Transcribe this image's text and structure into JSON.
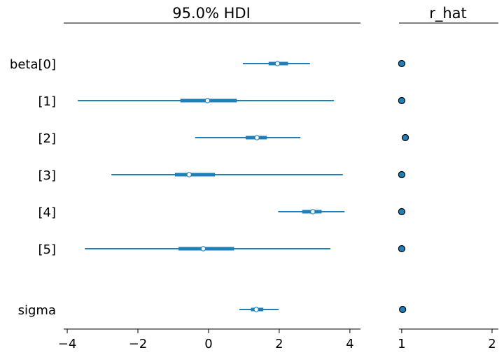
{
  "chart_data": [
    {
      "type": "forest",
      "title": "95.0% HDI",
      "xlim": [
        -4.1,
        4.3
      ],
      "ticks": [
        -4,
        -2,
        0,
        2,
        4
      ],
      "tick_labels": [
        "−4",
        "−2",
        "0",
        "2",
        "4"
      ],
      "rows": [
        {
          "label": "beta[0]",
          "median": 1.95,
          "iqr": [
            1.7,
            2.25
          ],
          "hdi": [
            0.97,
            2.87
          ]
        },
        {
          "label": "[1]",
          "median": -0.03,
          "iqr": [
            -0.8,
            0.8
          ],
          "hdi": [
            -3.7,
            3.55
          ]
        },
        {
          "label": "[2]",
          "median": 1.37,
          "iqr": [
            1.05,
            1.65
          ],
          "hdi": [
            -0.38,
            2.6
          ]
        },
        {
          "label": "[3]",
          "median": -0.55,
          "iqr": [
            -0.95,
            0.18
          ],
          "hdi": [
            -2.75,
            3.8
          ]
        },
        {
          "label": "[4]",
          "median": 2.95,
          "iqr": [
            2.65,
            3.2
          ],
          "hdi": [
            1.97,
            3.85
          ]
        },
        {
          "label": "[5]",
          "median": -0.15,
          "iqr": [
            -0.85,
            0.72
          ],
          "hdi": [
            -3.5,
            3.45
          ]
        },
        {
          "label": "sigma",
          "median": 1.35,
          "iqr": [
            1.2,
            1.55
          ],
          "hdi": [
            0.87,
            1.98
          ]
        }
      ]
    },
    {
      "type": "scatter",
      "title": "r_hat",
      "xlim": [
        0.97,
        2.07
      ],
      "ticks": [
        1,
        2
      ],
      "tick_labels": [
        "1",
        "2"
      ],
      "values": [
        1.0,
        1.0,
        1.04,
        1.0,
        1.0,
        1.0,
        1.01
      ]
    }
  ],
  "colors": {
    "line": "#1f7fb8",
    "marker_fill": "#1f7fb8",
    "median_fill": "#ffffff"
  }
}
